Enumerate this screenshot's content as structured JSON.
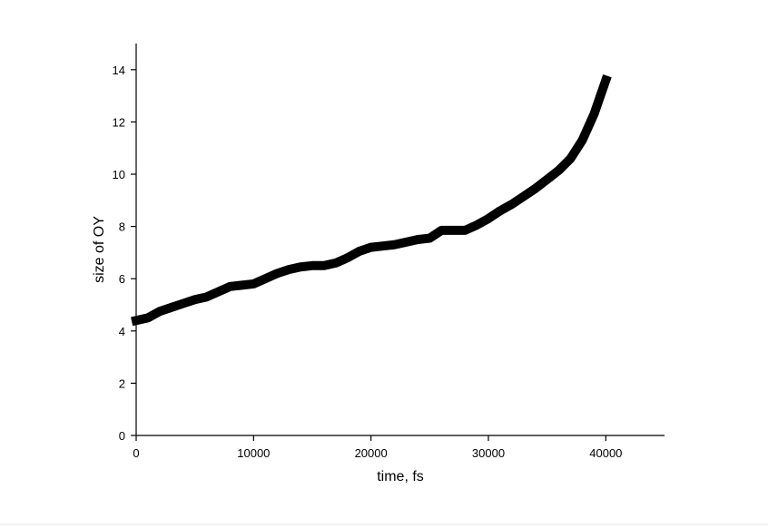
{
  "chart_data": {
    "type": "line",
    "xlabel": "time, fs",
    "ylabel": "size of OY",
    "x": [
      0,
      1000,
      2000,
      3000,
      4000,
      5000,
      6000,
      7000,
      8000,
      9000,
      10000,
      11000,
      12000,
      13000,
      14000,
      15000,
      16000,
      17000,
      18000,
      19000,
      20000,
      21000,
      22000,
      23000,
      24000,
      25000,
      26000,
      27000,
      28000,
      29000,
      30000,
      31000,
      32000,
      33000,
      34000,
      35000,
      36000,
      37000,
      38000,
      39000,
      40000
    ],
    "values": [
      4.4,
      4.5,
      4.75,
      4.9,
      5.05,
      5.2,
      5.3,
      5.5,
      5.7,
      5.75,
      5.8,
      6.0,
      6.2,
      6.35,
      6.45,
      6.5,
      6.5,
      6.6,
      6.8,
      7.05,
      7.2,
      7.25,
      7.3,
      7.4,
      7.5,
      7.55,
      7.85,
      7.85,
      7.85,
      8.05,
      8.3,
      8.6,
      8.85,
      9.15,
      9.45,
      9.8,
      10.15,
      10.6,
      11.3,
      12.3,
      13.6
    ],
    "color": "#000000",
    "xlim": [
      0,
      45000
    ],
    "xticks": [
      0,
      10000,
      20000,
      30000,
      40000
    ],
    "ylim": [
      0,
      15
    ],
    "yticks": [
      0,
      2,
      4,
      6,
      8,
      10,
      12,
      14
    ],
    "grid": false
  }
}
